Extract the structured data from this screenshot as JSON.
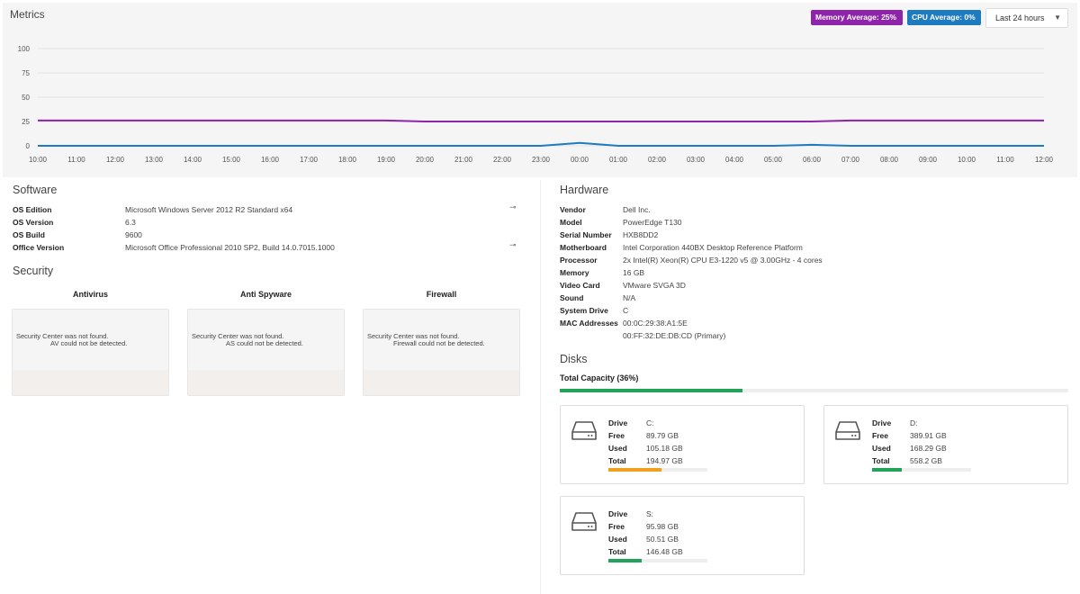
{
  "metrics": {
    "title": "Metrics",
    "memory_badge": "Memory Average: 25%",
    "cpu_badge": "CPU Average: 0%",
    "range": "Last 24 hours"
  },
  "chart_data": {
    "type": "line",
    "x": [
      "10:00",
      "11:00",
      "12:00",
      "13:00",
      "14:00",
      "15:00",
      "16:00",
      "17:00",
      "18:00",
      "19:00",
      "20:00",
      "21:00",
      "22:00",
      "23:00",
      "00:00",
      "01:00",
      "02:00",
      "03:00",
      "04:00",
      "05:00",
      "06:00",
      "07:00",
      "08:00",
      "09:00",
      "10:00",
      "11:00",
      "12:00"
    ],
    "yticks": [
      0,
      25,
      50,
      75,
      100
    ],
    "ylim": [
      0,
      100
    ],
    "series": [
      {
        "name": "Memory Average",
        "color": "#8e24aa",
        "values": [
          26,
          26,
          26,
          26,
          26,
          26,
          26,
          26,
          26,
          26,
          25,
          25,
          25,
          25,
          25,
          25,
          25,
          25,
          25,
          25,
          25,
          26,
          26,
          26,
          26,
          26,
          26
        ]
      },
      {
        "name": "CPU Average",
        "color": "#1e7bc0",
        "values": [
          0,
          0,
          0,
          0,
          0,
          0,
          0,
          0,
          0,
          0,
          0,
          0,
          0,
          0,
          3,
          0,
          0,
          0,
          0,
          0,
          1,
          0,
          0,
          0,
          0,
          0,
          0
        ]
      }
    ],
    "grid": true
  },
  "software": {
    "title": "Software",
    "rows": [
      {
        "k": "OS Edition",
        "v": "Microsoft Windows Server 2012 R2 Standard x64"
      },
      {
        "k": "OS Version",
        "v": "6.3"
      },
      {
        "k": "OS Build",
        "v": "9600"
      },
      {
        "k": "Office Version",
        "v": "Microsoft Office Professional 2010 SP2, Build 14.0.7015.1000"
      }
    ],
    "key_icon": "key-icon"
  },
  "security": {
    "title": "Security",
    "cols": [
      {
        "head": "Antivirus",
        "l1": "Security Center was not found.",
        "l2": "AV could not be detected."
      },
      {
        "head": "Anti Spyware",
        "l1": "Security Center was not found.",
        "l2": "AS could not be detected."
      },
      {
        "head": "Firewall",
        "l1": "Security Center was not found.",
        "l2": "Firewall could not be detected."
      }
    ]
  },
  "hardware": {
    "title": "Hardware",
    "rows": [
      {
        "k": "Vendor",
        "v": "Dell Inc."
      },
      {
        "k": "Model",
        "v": "PowerEdge T130"
      },
      {
        "k": "Serial Number",
        "v": "HXB8DD2"
      },
      {
        "k": "Motherboard",
        "v": "Intel Corporation 440BX Desktop Reference Platform"
      },
      {
        "k": "Processor",
        "v": "2x Intel(R) Xeon(R) CPU E3-1220 v5 @ 3.00GHz - 4 cores"
      },
      {
        "k": "Memory",
        "v": "16 GB"
      },
      {
        "k": "Video Card",
        "v": "VMware SVGA 3D"
      },
      {
        "k": "Sound",
        "v": "N/A"
      },
      {
        "k": "System Drive",
        "v": "C"
      },
      {
        "k": "MAC Addresses",
        "v": "00:0C:29:38:A1:5E"
      },
      {
        "k": "",
        "v": "00:FF:32:DE:DB:CD (Primary)"
      }
    ]
  },
  "disks": {
    "title": "Disks",
    "capacity_label": "Total Capacity (36%)",
    "capacity_pct": 36,
    "labels": {
      "drive": "Drive",
      "free": "Free",
      "used": "Used",
      "total": "Total"
    },
    "items": [
      {
        "drive": "C:",
        "free": "89.79 GB",
        "used": "105.18 GB",
        "total": "194.97 GB",
        "used_pct": 54,
        "color": "#f0a01e"
      },
      {
        "drive": "D:",
        "free": "389.91 GB",
        "used": "168.29 GB",
        "total": "558.2 GB",
        "used_pct": 30,
        "color": "#22a35a"
      },
      {
        "drive": "S:",
        "free": "95.98 GB",
        "used": "50.51 GB",
        "total": "146.48 GB",
        "used_pct": 34,
        "color": "#22a35a"
      }
    ]
  }
}
